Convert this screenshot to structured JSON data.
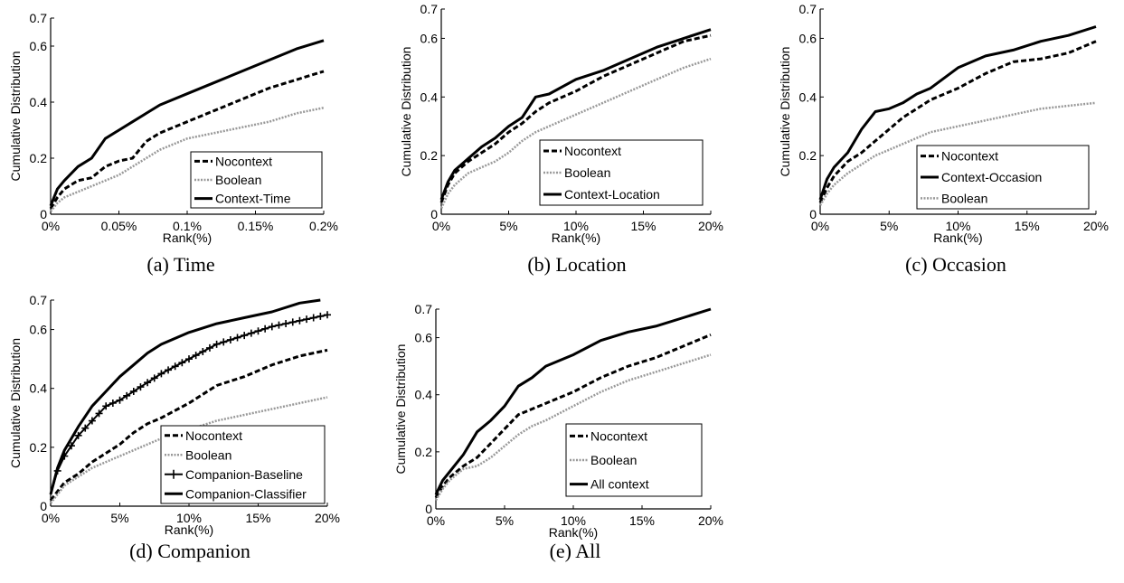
{
  "chart_data": [
    {
      "type": "line",
      "caption": "(a) Time",
      "xlabel": "Rank(%)",
      "ylabel": "Cumulative Distribution",
      "xlim": [
        0,
        0.2
      ],
      "ylim": [
        0,
        0.7
      ],
      "xticks": [
        0,
        0.05,
        0.1,
        0.15,
        0.2
      ],
      "xtick_labels": [
        "0%",
        "0.05%",
        "0.1%",
        "0.15%",
        "0.2%"
      ],
      "yticks": [
        0,
        0.2,
        0.4,
        0.6,
        0.7
      ],
      "ytick_labels": [
        "0",
        "0.2",
        "0.4",
        "0.6",
        "0.7"
      ],
      "legend": "lower-right",
      "grid": false,
      "series": [
        {
          "name": "Nocontext",
          "style": "dashed",
          "x": [
            0,
            0.005,
            0.01,
            0.02,
            0.03,
            0.04,
            0.05,
            0.06,
            0.07,
            0.08,
            0.1,
            0.12,
            0.14,
            0.16,
            0.18,
            0.2
          ],
          "y": [
            0.02,
            0.06,
            0.09,
            0.12,
            0.13,
            0.17,
            0.19,
            0.2,
            0.26,
            0.29,
            0.33,
            0.37,
            0.41,
            0.45,
            0.48,
            0.51
          ]
        },
        {
          "name": "Boolean",
          "style": "dotted",
          "x": [
            0,
            0.005,
            0.01,
            0.02,
            0.03,
            0.04,
            0.05,
            0.06,
            0.07,
            0.08,
            0.1,
            0.12,
            0.14,
            0.16,
            0.18,
            0.2
          ],
          "y": [
            0.01,
            0.04,
            0.06,
            0.08,
            0.1,
            0.12,
            0.14,
            0.17,
            0.2,
            0.23,
            0.27,
            0.29,
            0.31,
            0.33,
            0.36,
            0.38
          ]
        },
        {
          "name": "Context-Time",
          "style": "solid",
          "x": [
            0,
            0.005,
            0.01,
            0.02,
            0.03,
            0.04,
            0.05,
            0.06,
            0.07,
            0.08,
            0.1,
            0.12,
            0.14,
            0.16,
            0.18,
            0.2
          ],
          "y": [
            0.03,
            0.09,
            0.12,
            0.17,
            0.2,
            0.27,
            0.3,
            0.33,
            0.36,
            0.39,
            0.43,
            0.47,
            0.51,
            0.55,
            0.59,
            0.62
          ]
        }
      ]
    },
    {
      "type": "line",
      "caption": "(b) Location",
      "xlabel": "Rank(%)",
      "ylabel": "Cumulative Distribution",
      "xlim": [
        0,
        20
      ],
      "ylim": [
        0,
        0.7
      ],
      "xticks": [
        0,
        5,
        10,
        15,
        20
      ],
      "xtick_labels": [
        "0%",
        "5%",
        "10%",
        "15%",
        "20%"
      ],
      "yticks": [
        0,
        0.2,
        0.4,
        0.6,
        0.7
      ],
      "ytick_labels": [
        "0",
        "0.2",
        "0.4",
        "0.6",
        "0.7"
      ],
      "legend": "lower-right",
      "grid": false,
      "series": [
        {
          "name": "Nocontext",
          "style": "dashed",
          "x": [
            0,
            0.5,
            1,
            2,
            3,
            4,
            5,
            6,
            7,
            8,
            10,
            12,
            14,
            16,
            18,
            20
          ],
          "y": [
            0.04,
            0.1,
            0.14,
            0.18,
            0.21,
            0.24,
            0.28,
            0.31,
            0.35,
            0.38,
            0.42,
            0.47,
            0.51,
            0.55,
            0.59,
            0.61
          ]
        },
        {
          "name": "Boolean",
          "style": "dotted",
          "x": [
            0,
            0.5,
            1,
            2,
            3,
            4,
            5,
            6,
            7,
            8,
            10,
            12,
            14,
            16,
            18,
            20
          ],
          "y": [
            0.02,
            0.07,
            0.1,
            0.14,
            0.16,
            0.18,
            0.21,
            0.25,
            0.28,
            0.3,
            0.34,
            0.38,
            0.42,
            0.46,
            0.5,
            0.53
          ]
        },
        {
          "name": "Context-Location",
          "style": "solid",
          "x": [
            0,
            0.5,
            1,
            2,
            3,
            4,
            5,
            6,
            7,
            8,
            10,
            12,
            14,
            16,
            18,
            20
          ],
          "y": [
            0.05,
            0.11,
            0.15,
            0.19,
            0.23,
            0.26,
            0.3,
            0.33,
            0.4,
            0.41,
            0.46,
            0.49,
            0.53,
            0.57,
            0.6,
            0.63
          ]
        }
      ]
    },
    {
      "type": "line",
      "caption": "(c) Occasion",
      "xlabel": "Rank(%)",
      "ylabel": "Cumulative Distribution",
      "xlim": [
        0,
        20
      ],
      "ylim": [
        0,
        0.7
      ],
      "xticks": [
        0,
        5,
        10,
        15,
        20
      ],
      "xtick_labels": [
        "0%",
        "5%",
        "10%",
        "15%",
        "20%"
      ],
      "yticks": [
        0,
        0.2,
        0.4,
        0.6,
        0.7
      ],
      "ytick_labels": [
        "0",
        "0.2",
        "0.4",
        "0.6",
        "0.7"
      ],
      "legend": "lower-right",
      "grid": false,
      "series": [
        {
          "name": "Nocontext",
          "style": "dashed",
          "x": [
            0,
            0.5,
            1,
            2,
            3,
            4,
            5,
            6,
            7,
            8,
            10,
            12,
            14,
            16,
            18,
            20
          ],
          "y": [
            0.04,
            0.09,
            0.13,
            0.18,
            0.21,
            0.25,
            0.29,
            0.33,
            0.36,
            0.39,
            0.43,
            0.48,
            0.52,
            0.53,
            0.55,
            0.59
          ]
        },
        {
          "name": "Context-Occasion",
          "style": "solid",
          "x": [
            0,
            0.5,
            1,
            2,
            3,
            4,
            5,
            6,
            7,
            8,
            10,
            12,
            14,
            16,
            18,
            20
          ],
          "y": [
            0.05,
            0.12,
            0.16,
            0.21,
            0.29,
            0.35,
            0.36,
            0.38,
            0.41,
            0.43,
            0.5,
            0.54,
            0.56,
            0.59,
            0.61,
            0.64
          ]
        },
        {
          "name": "Boolean",
          "style": "dotted",
          "x": [
            0,
            0.5,
            1,
            2,
            3,
            4,
            5,
            6,
            7,
            8,
            10,
            12,
            14,
            16,
            18,
            20
          ],
          "y": [
            0.03,
            0.07,
            0.1,
            0.14,
            0.17,
            0.2,
            0.22,
            0.24,
            0.26,
            0.28,
            0.3,
            0.32,
            0.34,
            0.36,
            0.37,
            0.38
          ]
        }
      ]
    },
    {
      "type": "line",
      "caption": "(d) Companion",
      "xlabel": "Rank(%)",
      "ylabel": "Cumulative Distribution",
      "xlim": [
        0,
        20
      ],
      "ylim": [
        0,
        0.7
      ],
      "xticks": [
        0,
        5,
        10,
        15,
        20
      ],
      "xtick_labels": [
        "0%",
        "5%",
        "10%",
        "15%",
        "20%"
      ],
      "yticks": [
        0,
        0.2,
        0.4,
        0.6,
        0.7
      ],
      "ytick_labels": [
        "0",
        "0.2",
        "0.4",
        "0.6",
        "0.7"
      ],
      "legend": "lower-right",
      "grid": false,
      "series": [
        {
          "name": "Nocontext",
          "style": "dashed",
          "x": [
            0,
            0.5,
            1,
            2,
            3,
            4,
            5,
            6,
            7,
            8,
            10,
            12,
            14,
            16,
            18,
            20
          ],
          "y": [
            0.02,
            0.05,
            0.08,
            0.11,
            0.15,
            0.18,
            0.21,
            0.25,
            0.28,
            0.3,
            0.35,
            0.41,
            0.44,
            0.48,
            0.51,
            0.53
          ]
        },
        {
          "name": "Boolean",
          "style": "dotted",
          "x": [
            0,
            0.5,
            1,
            2,
            3,
            4,
            5,
            6,
            7,
            8,
            10,
            12,
            14,
            16,
            18,
            20
          ],
          "y": [
            0.01,
            0.04,
            0.07,
            0.1,
            0.13,
            0.15,
            0.17,
            0.19,
            0.21,
            0.23,
            0.26,
            0.29,
            0.31,
            0.33,
            0.35,
            0.37
          ]
        },
        {
          "name": "Companion-Baseline",
          "style": "plus",
          "x": [
            0,
            0.5,
            1,
            2,
            3,
            4,
            5,
            6,
            7,
            8,
            10,
            12,
            14,
            16,
            18,
            20
          ],
          "y": [
            0.04,
            0.12,
            0.17,
            0.24,
            0.29,
            0.34,
            0.36,
            0.39,
            0.42,
            0.45,
            0.5,
            0.55,
            0.58,
            0.61,
            0.63,
            0.65
          ]
        },
        {
          "name": "Companion-Classifier",
          "style": "solid",
          "x": [
            0,
            0.5,
            1,
            2,
            3,
            4,
            5,
            6,
            7,
            8,
            10,
            12,
            14,
            16,
            18,
            19.5
          ],
          "y": [
            0.04,
            0.13,
            0.19,
            0.27,
            0.34,
            0.39,
            0.44,
            0.48,
            0.52,
            0.55,
            0.59,
            0.62,
            0.64,
            0.66,
            0.69,
            0.7
          ]
        }
      ]
    },
    {
      "type": "line",
      "caption": "(e) All",
      "xlabel": "Rank(%)",
      "ylabel": "Cumulative Distribution",
      "xlim": [
        0,
        20
      ],
      "ylim": [
        0,
        0.7
      ],
      "xticks": [
        0,
        5,
        10,
        15,
        20
      ],
      "xtick_labels": [
        "0%",
        "5%",
        "10%",
        "15%",
        "20%"
      ],
      "yticks": [
        0,
        0.2,
        0.4,
        0.6,
        0.7
      ],
      "ytick_labels": [
        "0",
        "0.2",
        "0.4",
        "0.6",
        "0.7"
      ],
      "legend": "lower-right",
      "grid": false,
      "series": [
        {
          "name": "Nocontext",
          "style": "dashed",
          "x": [
            0,
            0.5,
            1,
            2,
            3,
            4,
            5,
            6,
            7,
            8,
            10,
            12,
            14,
            16,
            18,
            20
          ],
          "y": [
            0.04,
            0.08,
            0.11,
            0.15,
            0.18,
            0.23,
            0.28,
            0.33,
            0.35,
            0.37,
            0.41,
            0.46,
            0.5,
            0.53,
            0.57,
            0.61
          ]
        },
        {
          "name": "Boolean",
          "style": "dotted",
          "x": [
            0,
            0.5,
            1,
            2,
            3,
            4,
            5,
            6,
            7,
            8,
            10,
            12,
            14,
            16,
            18,
            20
          ],
          "y": [
            0.03,
            0.07,
            0.1,
            0.14,
            0.15,
            0.18,
            0.22,
            0.26,
            0.29,
            0.31,
            0.36,
            0.41,
            0.45,
            0.48,
            0.51,
            0.54
          ]
        },
        {
          "name": "All context",
          "style": "solid",
          "x": [
            0,
            0.5,
            1,
            2,
            3,
            4,
            5,
            6,
            7,
            8,
            10,
            12,
            14,
            16,
            18,
            20
          ],
          "y": [
            0.05,
            0.1,
            0.13,
            0.19,
            0.27,
            0.31,
            0.36,
            0.43,
            0.46,
            0.5,
            0.54,
            0.59,
            0.62,
            0.64,
            0.67,
            0.7
          ]
        }
      ]
    }
  ]
}
